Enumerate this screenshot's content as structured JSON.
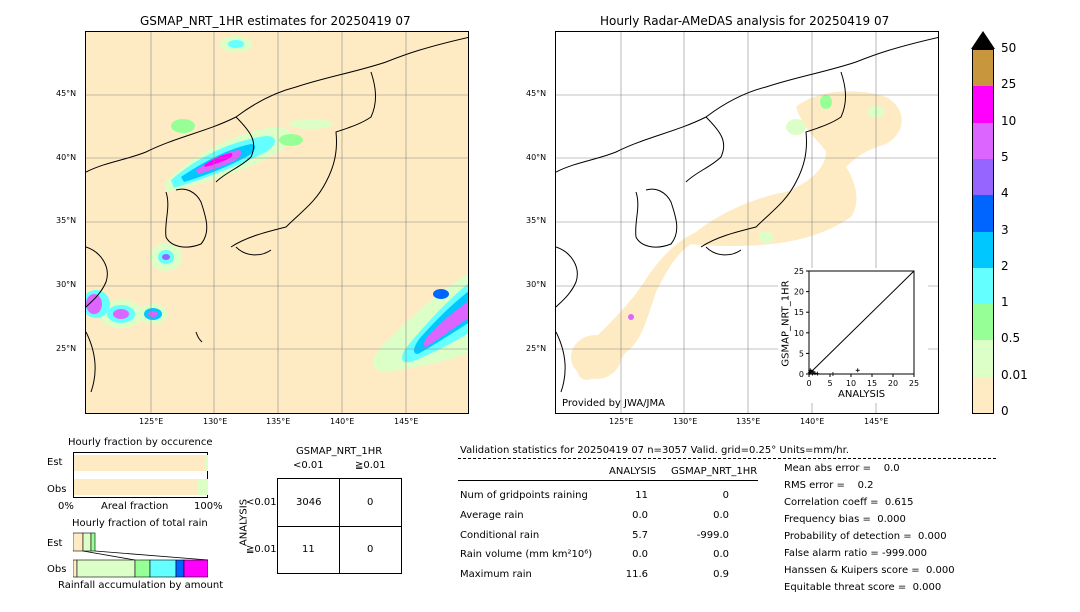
{
  "left_map": {
    "title": "GSMAP_NRT_1HR estimates for 20250419 07",
    "lat_ticks": [
      "45°N",
      "40°N",
      "35°N",
      "30°N",
      "25°N"
    ],
    "lon_ticks": [
      "125°E",
      "130°E",
      "135°E",
      "140°E",
      "145°E"
    ]
  },
  "right_map": {
    "title": "Hourly Radar-AMeDAS analysis for 20250419 07",
    "lat_ticks": [
      "45°N",
      "40°N",
      "35°N",
      "30°N",
      "25°N"
    ],
    "lon_ticks": [
      "125°E",
      "130°E",
      "135°E",
      "140°E",
      "145°E"
    ],
    "credit": "Provided by JWA/JMA"
  },
  "colorbar": {
    "labels": [
      "50",
      "25",
      "10",
      "5",
      "4",
      "3",
      "2",
      "1",
      "0.5",
      "0.01",
      "0"
    ],
    "colors": [
      "#c8963c",
      "#ff00ff",
      "#dc64ff",
      "#9664ff",
      "#0064ff",
      "#00c8ff",
      "#64ffff",
      "#96ff96",
      "#dcffc8",
      "#ffebc3"
    ]
  },
  "chart_data": [
    {
      "type": "scatter",
      "title": "",
      "xlabel": "ANALYSIS",
      "ylabel": "GSMAP_NRT_1HR",
      "xlim": [
        0,
        25
      ],
      "ylim": [
        0,
        25
      ],
      "x_ticks": [
        "0",
        "5",
        "10",
        "15",
        "20",
        "25"
      ],
      "y_ticks": [
        "0",
        "5",
        "10",
        "15",
        "20",
        "25"
      ],
      "x": [
        0.2,
        0.5,
        0.8,
        1.0,
        1.4,
        0.3,
        11.6,
        2.0,
        5.7
      ],
      "y": [
        0.3,
        0.6,
        0.1,
        0.5,
        0.2,
        0.9,
        0.9,
        0.1,
        0.0
      ]
    },
    {
      "type": "bar",
      "title": "Hourly fraction by occurence",
      "categories": [
        "Est",
        "Obs"
      ],
      "xlabel": "Areal fraction",
      "x_ticks": [
        "0%",
        "100%"
      ],
      "values": [
        0.99,
        0.96
      ]
    },
    {
      "type": "bar",
      "title": "Hourly fraction of total rain",
      "categories": [
        "Est",
        "Obs"
      ],
      "xlabel": "Rainfall accumulation by amount"
    }
  ],
  "contingency": {
    "title": "GSMAP_NRT_1HR",
    "col_labels": [
      "<0.01",
      "≧0.01"
    ],
    "row_labels": [
      "<0.01",
      "≧0.01"
    ],
    "row_axis": "ANALYSIS",
    "cells": [
      [
        "3046",
        "0"
      ],
      [
        "11",
        "0"
      ]
    ]
  },
  "validation": {
    "header": "Validation statistics for 20250419 07  n=3057 Valid. grid=0.25° Units=mm/hr.",
    "col_analysis": "ANALYSIS",
    "col_gsmap": "GSMAP_NRT_1HR",
    "rows": [
      {
        "label": "Num of gridpoints raining",
        "a": "11",
        "g": "0"
      },
      {
        "label": "Average rain",
        "a": "0.0",
        "g": "0.0"
      },
      {
        "label": "Conditional rain",
        "a": "5.7",
        "g": "-999.0"
      },
      {
        "label": "Rain volume (mm km²10⁶)",
        "a": "0.0",
        "g": "0.0"
      },
      {
        "label": "Maximum rain",
        "a": "11.6",
        "g": "0.9"
      }
    ],
    "scores": [
      "Mean abs error =    0.0",
      "RMS error =    0.2",
      "Correlation coeff =  0.615",
      "Frequency bias =  0.000",
      "Probability of detection =  0.000",
      "False alarm ratio = -999.000",
      "Hanssen & Kuipers score =  0.000",
      "Equitable threat score =  0.000"
    ]
  }
}
